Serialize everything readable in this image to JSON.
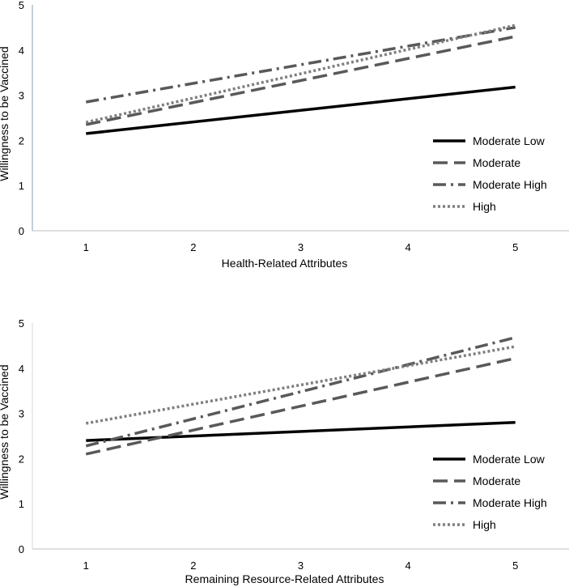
{
  "chart_data": [
    {
      "type": "line",
      "title": "",
      "xlabel": "Health-Related Attributes",
      "ylabel": "Willingness to be Vaccined",
      "x": [
        1,
        5
      ],
      "xlim": [
        0.5,
        5.5
      ],
      "ylim": [
        0,
        5
      ],
      "x_ticks": [
        "1",
        "2",
        "3",
        "4",
        "5"
      ],
      "y_ticks": [
        "0",
        "1",
        "2",
        "3",
        "4",
        "5"
      ],
      "legend_position": "bottom-right",
      "series": [
        {
          "name": "Moderate Low",
          "values": [
            2.15,
            3.18
          ],
          "style": "solid",
          "color": "#000000"
        },
        {
          "name": "Moderate",
          "values": [
            2.35,
            4.3
          ],
          "style": "dash",
          "color": "#595959"
        },
        {
          "name": "Moderate High",
          "values": [
            2.85,
            4.5
          ],
          "style": "dashdot",
          "color": "#595959"
        },
        {
          "name": "High",
          "values": [
            2.4,
            4.55
          ],
          "style": "dot",
          "color": "#7f7f7f"
        }
      ]
    },
    {
      "type": "line",
      "title": "",
      "xlabel": "Remaining Resource-Related Attributes",
      "ylabel": "Willingness to be Vaccined",
      "x": [
        1,
        5
      ],
      "xlim": [
        0.5,
        5.5
      ],
      "ylim": [
        0,
        5
      ],
      "x_ticks": [
        "1",
        "2",
        "3",
        "4",
        "5"
      ],
      "y_ticks": [
        "0",
        "1",
        "2",
        "3",
        "4",
        "5"
      ],
      "legend_position": "bottom-right",
      "series": [
        {
          "name": "Moderate Low",
          "values": [
            2.4,
            2.8
          ],
          "style": "solid",
          "color": "#000000"
        },
        {
          "name": "Moderate",
          "values": [
            2.1,
            4.22
          ],
          "style": "dash",
          "color": "#595959"
        },
        {
          "name": "Moderate High",
          "values": [
            2.28,
            4.68
          ],
          "style": "dashdot",
          "color": "#595959"
        },
        {
          "name": "High",
          "values": [
            2.78,
            4.48
          ],
          "style": "dot",
          "color": "#7f7f7f"
        }
      ]
    }
  ]
}
